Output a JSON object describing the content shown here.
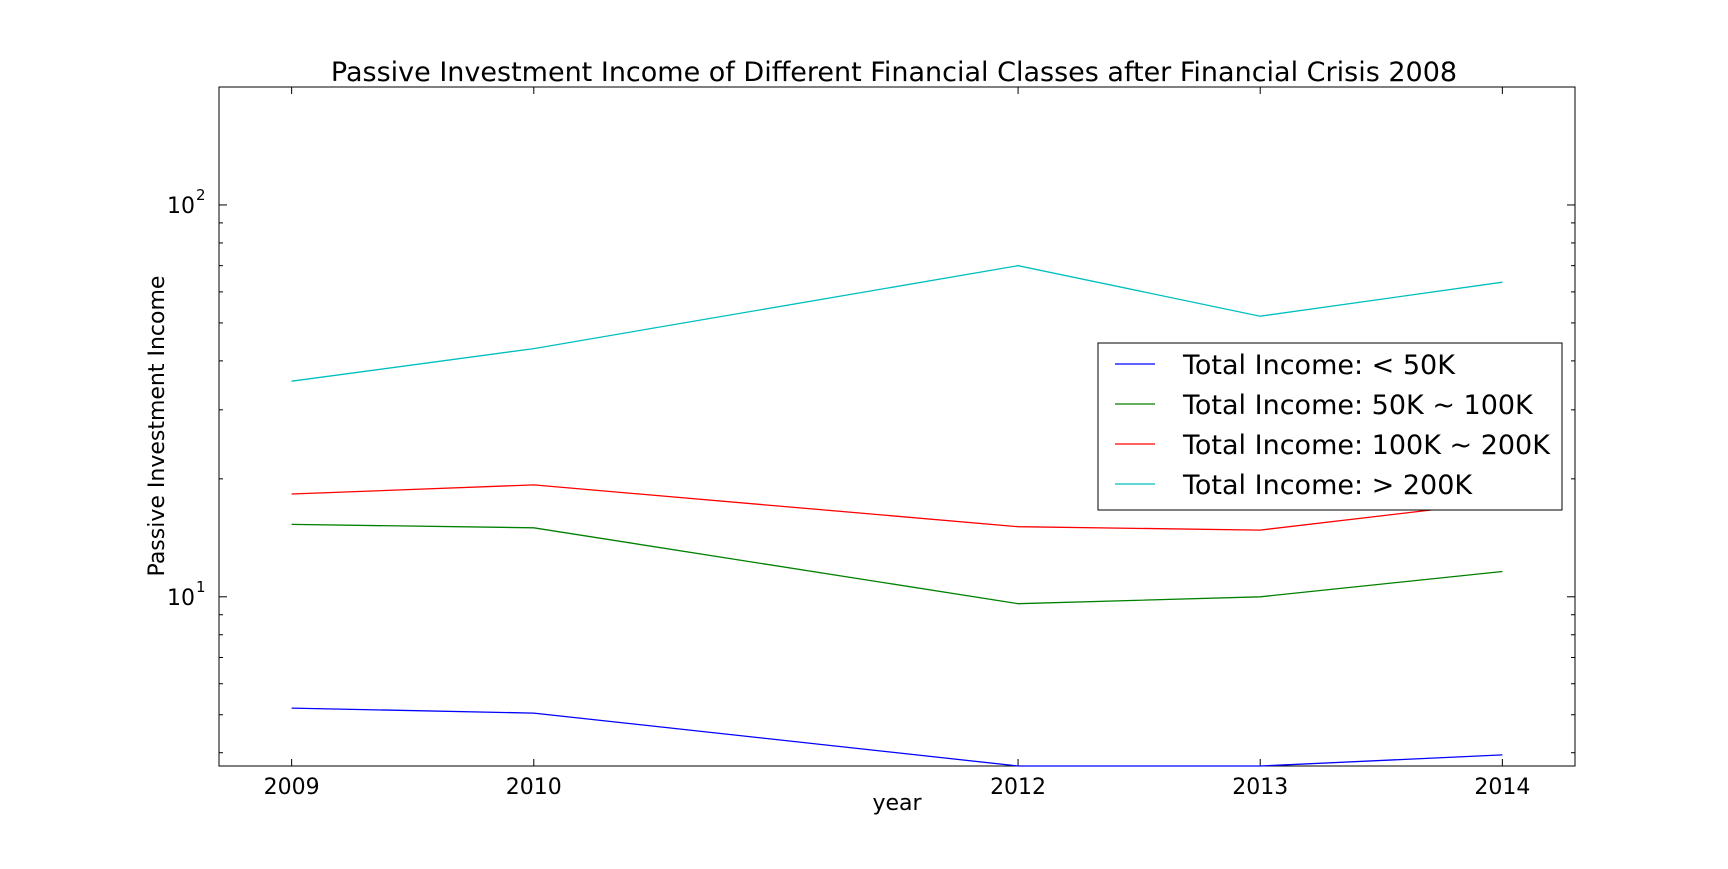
{
  "chart_data": {
    "type": "line",
    "title": "Passive Investment Income of Different Financial Classes after Financial Crisis 2008",
    "xlabel": "year",
    "ylabel": "Passive Investment Income",
    "x": [
      2009,
      2010,
      2012,
      2013,
      2014
    ],
    "x_tick_labels": [
      "2009",
      "2010",
      "2012",
      "2013",
      "2014"
    ],
    "xlim": [
      2008.7,
      2014.3
    ],
    "yscale": "log",
    "ylim": [
      3.7,
      200
    ],
    "y_ticks": [
      {
        "value": 10,
        "base": "10",
        "exp": "1"
      },
      {
        "value": 100,
        "base": "10",
        "exp": "2"
      }
    ],
    "grid": false,
    "legend_position": "center-right",
    "series": [
      {
        "name": "Total Income: < 50K",
        "color": "#0000ff",
        "values": [
          5.2,
          5.05,
          3.7,
          3.7,
          3.95
        ]
      },
      {
        "name": "Total Income: 50K ~ 100K",
        "color": "#008000",
        "values": [
          15.3,
          15.0,
          9.6,
          10.0,
          11.6
        ]
      },
      {
        "name": "Total Income: 100K ~ 200K",
        "color": "#ff0000",
        "values": [
          18.3,
          19.3,
          15.1,
          14.8,
          17.5
        ]
      },
      {
        "name": "Total Income: > 200K",
        "color": "#00bfbf",
        "values": [
          35.5,
          43.0,
          70.0,
          52.0,
          63.5
        ]
      }
    ]
  }
}
